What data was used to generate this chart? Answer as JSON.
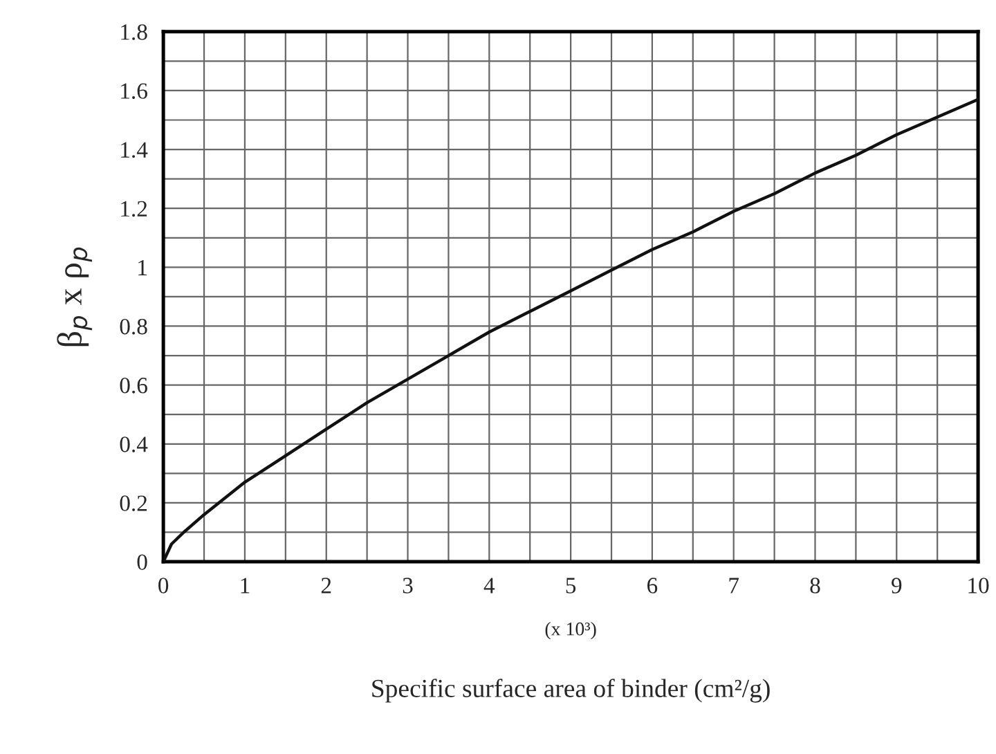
{
  "chart_data": {
    "type": "line",
    "xlabel": "Specific surface area of binder (cm²/g)",
    "ylabel": "β$_{p}$ x ρ$_{p}$",
    "annotations": [
      "(x 10³)"
    ],
    "x": [
      0,
      0.1,
      0.25,
      0.5,
      1,
      1.5,
      2,
      2.5,
      3,
      3.5,
      4,
      4.5,
      5,
      5.5,
      6,
      6.5,
      7,
      7.5,
      8,
      8.5,
      9,
      9.5,
      10
    ],
    "series": [
      {
        "color": "#111111",
        "values": [
          0,
          0.06,
          0.1,
          0.16,
          0.27,
          0.36,
          0.45,
          0.54,
          0.62,
          0.7,
          0.78,
          0.85,
          0.92,
          0.99,
          1.06,
          1.12,
          1.19,
          1.25,
          1.32,
          1.38,
          1.45,
          1.51,
          1.57
        ]
      }
    ],
    "xlim": [
      0,
      10
    ],
    "ylim": [
      0,
      1.8
    ],
    "xticks": [
      0,
      {
        "value": 0.5,
        "label": null
      },
      1,
      {
        "value": 1.5,
        "label": null
      },
      2,
      {
        "value": 2.5,
        "label": null
      },
      3,
      {
        "value": 3.5,
        "label": null
      },
      4,
      {
        "value": 4.5,
        "label": null
      },
      5,
      {
        "value": 5.5,
        "label": null
      },
      6,
      {
        "value": 6.5,
        "label": null
      },
      7,
      {
        "value": 7.5,
        "label": null
      },
      8,
      {
        "value": 8.5,
        "label": null
      },
      9,
      {
        "value": 9.5,
        "label": null
      },
      10
    ],
    "yticks": [
      0,
      {
        "value": 0.1,
        "label": null
      },
      0.2,
      {
        "value": 0.3,
        "label": null
      },
      0.4,
      {
        "value": 0.5,
        "label": null
      },
      0.6,
      {
        "value": 0.7,
        "label": null
      },
      0.8,
      {
        "value": 0.9,
        "label": null
      },
      1,
      {
        "value": 1.1,
        "label": null
      },
      1.2,
      {
        "value": 1.3,
        "label": null
      },
      1.4,
      {
        "value": 1.5,
        "label": null
      },
      1.6,
      {
        "value": 1.7,
        "label": null
      },
      1.8
    ],
    "grid": true,
    "line_style": "solid",
    "marker": "none"
  }
}
